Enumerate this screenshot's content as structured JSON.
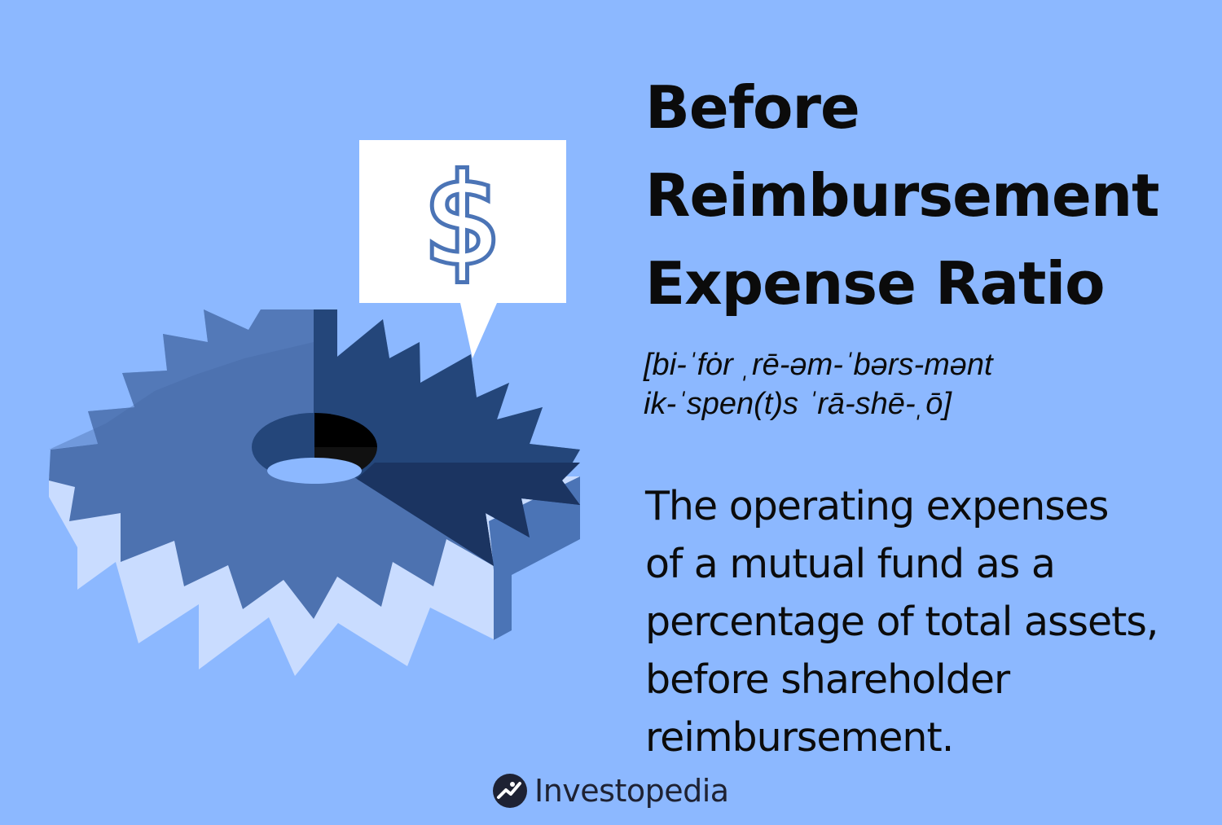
{
  "title_lines": [
    "Before",
    "Reimbursement",
    "Expense Ratio"
  ],
  "pronunciation_lines": [
    "[bi-ˈfȯr ˌrē-əm-ˈbərs-mənt",
    "ik-ˈspen(t)s ˈrā-shē-ˌō]"
  ],
  "definition_lines": [
    "The operating expenses",
    "of a mutual fund as a",
    "percentage of total assets,",
    "before shareholder",
    "reimbursement."
  ],
  "illustration": {
    "bubble_symbol": "$",
    "icons": [
      "gear-icon",
      "speech-bubble-icon",
      "dollar-sign-icon"
    ]
  },
  "brand": {
    "name": "Investopedia",
    "icon": "investopedia-logo-icon"
  },
  "colors": {
    "background": "#8cb8ff",
    "gear_face": "#4d72b0",
    "gear_dark": "#24467a",
    "gear_darkest": "#1b3461",
    "gear_side_light": "#c9dcff",
    "text": "#0b0b0b"
  }
}
